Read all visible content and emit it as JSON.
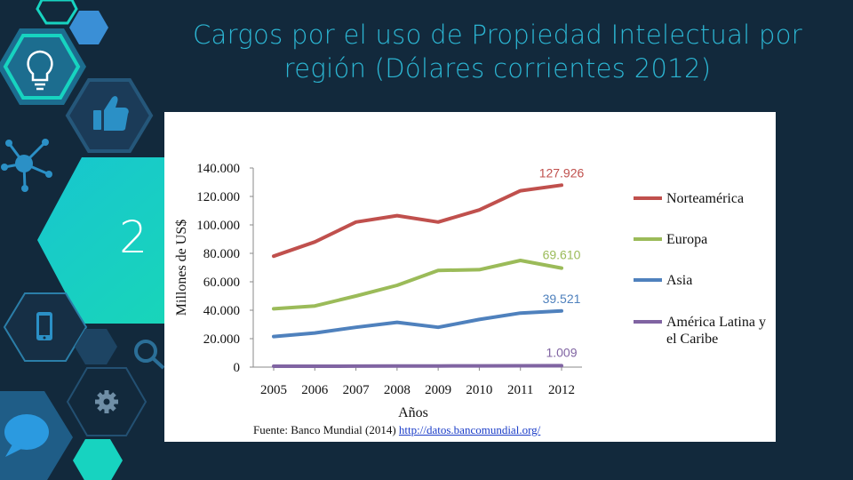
{
  "slide": {
    "title": "Cargos por el uso de Propiedad Intelectual por región (Dólares corrientes 2012)",
    "number": "2"
  },
  "theme": {
    "background": "#12293c",
    "accent_cyan": "#2cb6d3",
    "accent_blue": "#3a8fd6",
    "accent_teal": "#17d3c0"
  },
  "chart_data": {
    "type": "line",
    "x": [
      2005,
      2006,
      2007,
      2008,
      2009,
      2010,
      2011,
      2012
    ],
    "xlabel": "Años",
    "ylabel": "Millones de US$",
    "ylim": [
      0,
      140000
    ],
    "yticks": [
      0,
      20000,
      40000,
      60000,
      80000,
      100000,
      120000,
      140000
    ],
    "ytick_labels": [
      "0",
      "20.000",
      "40.000",
      "60.000",
      "80.000",
      "100.000",
      "120.000",
      "140.000"
    ],
    "grid": false,
    "legend_position": "right",
    "series": [
      {
        "name": "Norteamérica",
        "color": "#c0504d",
        "values": [
          78000,
          88000,
          102000,
          106500,
          102000,
          110500,
          124000,
          127926
        ],
        "end_label": "127.926"
      },
      {
        "name": "Europa",
        "color": "#9bbb59",
        "values": [
          41000,
          43000,
          50000,
          57500,
          68000,
          68500,
          75000,
          69610
        ],
        "end_label": "69.610"
      },
      {
        "name": "Asia",
        "color": "#4f81bd",
        "values": [
          21500,
          24000,
          28000,
          31500,
          28000,
          33500,
          38000,
          39521
        ],
        "end_label": "39.521"
      },
      {
        "name": "América Latina y el Caribe",
        "color": "#8064a2",
        "values": [
          600,
          650,
          700,
          750,
          800,
          850,
          950,
          1009
        ],
        "end_label": "1.009"
      }
    ],
    "source_text": "Fuente: Banco Mundial (2014)",
    "source_link": "http://datos.bancomundial.org/"
  }
}
